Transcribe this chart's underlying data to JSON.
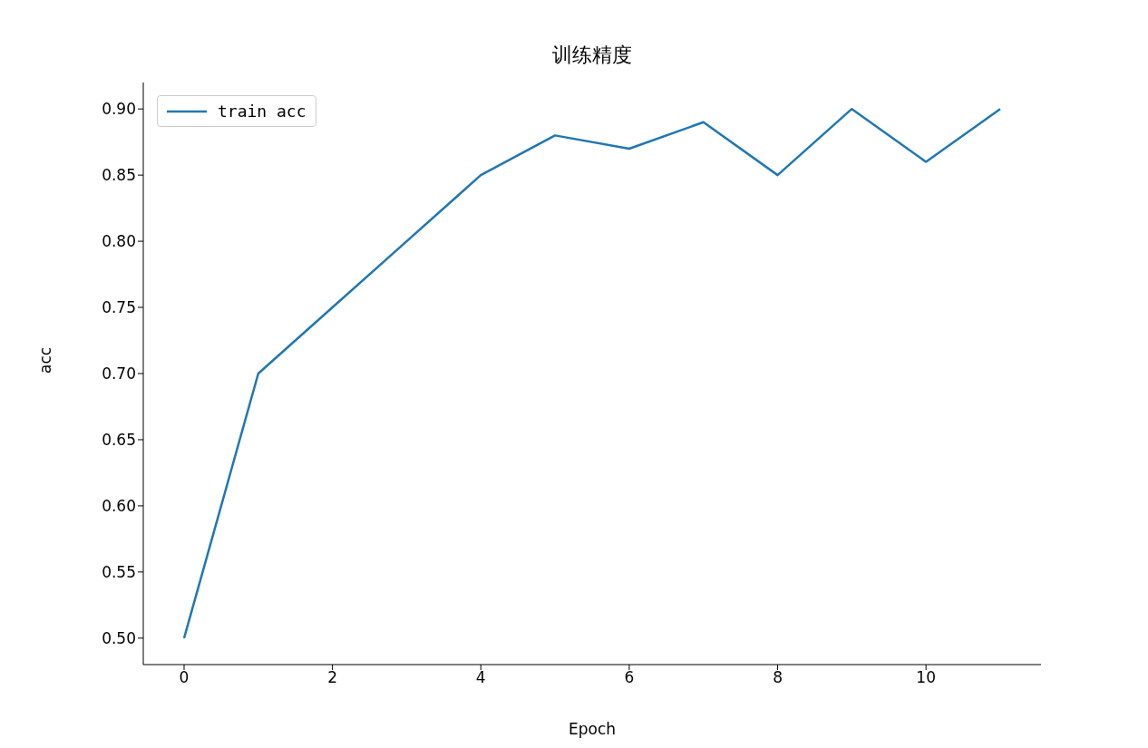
{
  "chart_data": {
    "type": "line",
    "title": "训练精度",
    "xlabel": "Epoch",
    "ylabel": "acc",
    "x": [
      0,
      1,
      2,
      3,
      4,
      5,
      6,
      7,
      8,
      9,
      10,
      11
    ],
    "series": [
      {
        "name": "train acc",
        "color": "#1f77b4",
        "values": [
          0.5,
          0.7,
          0.75,
          0.8,
          0.85,
          0.88,
          0.87,
          0.89,
          0.85,
          0.9,
          0.86,
          0.9
        ]
      }
    ],
    "xlim": [
      -0.55,
      11.55
    ],
    "xticks": [
      0,
      2,
      4,
      6,
      8,
      10
    ],
    "ylim": [
      0.48,
      0.92
    ],
    "yticks": [
      {
        "value": 0.5,
        "label": "0.50"
      },
      {
        "value": 0.55,
        "label": "0.55"
      },
      {
        "value": 0.6,
        "label": "0.60"
      },
      {
        "value": 0.65,
        "label": "0.65"
      },
      {
        "value": 0.7,
        "label": "0.70"
      },
      {
        "value": 0.75,
        "label": "0.75"
      },
      {
        "value": 0.8,
        "label": "0.80"
      },
      {
        "value": 0.85,
        "label": "0.85"
      },
      {
        "value": 0.9,
        "label": "0.90"
      }
    ],
    "legend": "top left",
    "grid": false
  }
}
